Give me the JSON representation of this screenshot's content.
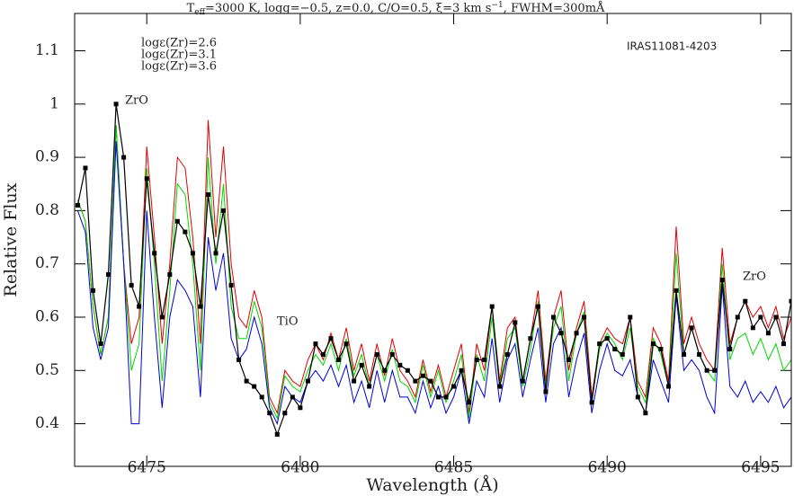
{
  "chart_data": {
    "type": "line",
    "title": [
      "T",
      "eff",
      "=3000 K, logg=−0.5, z=0.0, C/O=0.5, ξ=3 km s",
      "−1",
      ", FWHM=300mÅ"
    ],
    "x_label": "Wavelength (Å)",
    "y_label": "Relative Flux",
    "annotations": [
      "ZrO",
      "TiO",
      "ZrO",
      "IRAS11081-4203"
    ],
    "xlim": [
      6472.65,
      6496.0
    ],
    "ylim": [
      0.32,
      1.17
    ],
    "xticks": [
      6475,
      6480,
      6485,
      6490,
      6495
    ],
    "yticks": [
      0.4,
      0.5,
      0.6,
      0.7,
      0.8,
      0.9,
      1,
      1.1
    ],
    "x": [
      6472.75,
      6473.0,
      6473.25,
      6473.5,
      6473.75,
      6474.0,
      6474.25,
      6474.5,
      6474.75,
      6475.0,
      6475.25,
      6475.5,
      6475.75,
      6476.0,
      6476.25,
      6476.5,
      6476.75,
      6477.0,
      6477.25,
      6477.5,
      6477.75,
      6478.0,
      6478.25,
      6478.5,
      6478.75,
      6479.0,
      6479.25,
      6479.5,
      6479.75,
      6480.0,
      6480.25,
      6480.5,
      6480.75,
      6481.0,
      6481.25,
      6481.5,
      6481.75,
      6482.0,
      6482.25,
      6482.5,
      6482.75,
      6483.0,
      6483.25,
      6483.5,
      6483.75,
      6484.0,
      6484.25,
      6484.5,
      6484.75,
      6485.0,
      6485.25,
      6485.5,
      6485.75,
      6486.0,
      6486.25,
      6486.5,
      6486.75,
      6487.0,
      6487.25,
      6487.5,
      6487.75,
      6488.0,
      6488.25,
      6488.5,
      6488.75,
      6489.0,
      6489.25,
      6489.5,
      6489.75,
      6490.0,
      6490.25,
      6490.5,
      6490.75,
      6491.0,
      6491.25,
      6491.5,
      6491.75,
      6492.0,
      6492.25,
      6492.5,
      6492.75,
      6493.0,
      6493.25,
      6493.5,
      6493.75,
      6494.0,
      6494.25,
      6494.5,
      6494.75,
      6495.0,
      6495.25,
      6495.5,
      6495.75,
      6496.0
    ],
    "series": [
      {
        "name": "logε(Zr)=2.6",
        "color": "#e00000",
        "values": [
          0.82,
          0.78,
          0.62,
          0.53,
          0.6,
          0.96,
          0.7,
          0.55,
          0.6,
          0.92,
          0.75,
          0.55,
          0.7,
          0.9,
          0.88,
          0.75,
          0.55,
          0.97,
          0.75,
          0.92,
          0.7,
          0.6,
          0.58,
          0.65,
          0.6,
          0.45,
          0.42,
          0.5,
          0.48,
          0.47,
          0.52,
          0.55,
          0.52,
          0.57,
          0.52,
          0.58,
          0.5,
          0.55,
          0.48,
          0.55,
          0.49,
          0.56,
          0.5,
          0.48,
          0.45,
          0.52,
          0.46,
          0.51,
          0.45,
          0.5,
          0.55,
          0.42,
          0.55,
          0.5,
          0.62,
          0.48,
          0.58,
          0.6,
          0.48,
          0.56,
          0.65,
          0.48,
          0.6,
          0.65,
          0.5,
          0.58,
          0.63,
          0.45,
          0.55,
          0.58,
          0.56,
          0.55,
          0.6,
          0.48,
          0.45,
          0.58,
          0.55,
          0.48,
          0.77,
          0.55,
          0.6,
          0.55,
          0.52,
          0.5,
          0.73,
          0.55,
          0.6,
          0.63,
          0.6,
          0.62,
          0.58,
          0.62,
          0.56,
          0.6
        ]
      },
      {
        "name": "logε(Zr)=3.1",
        "color": "#00d800",
        "values": [
          0.82,
          0.78,
          0.62,
          0.53,
          0.6,
          0.96,
          0.7,
          0.5,
          0.55,
          0.88,
          0.7,
          0.48,
          0.65,
          0.85,
          0.83,
          0.7,
          0.5,
          0.9,
          0.7,
          0.85,
          0.62,
          0.56,
          0.56,
          0.63,
          0.58,
          0.44,
          0.41,
          0.49,
          0.47,
          0.46,
          0.5,
          0.53,
          0.51,
          0.55,
          0.5,
          0.56,
          0.49,
          0.53,
          0.47,
          0.53,
          0.48,
          0.54,
          0.48,
          0.47,
          0.44,
          0.51,
          0.45,
          0.5,
          0.44,
          0.48,
          0.53,
          0.41,
          0.53,
          0.48,
          0.6,
          0.47,
          0.56,
          0.58,
          0.47,
          0.54,
          0.63,
          0.47,
          0.58,
          0.62,
          0.48,
          0.57,
          0.61,
          0.44,
          0.54,
          0.57,
          0.55,
          0.52,
          0.58,
          0.47,
          0.44,
          0.56,
          0.53,
          0.47,
          0.72,
          0.53,
          0.58,
          0.53,
          0.5,
          0.48,
          0.7,
          0.52,
          0.56,
          0.57,
          0.53,
          0.56,
          0.52,
          0.55,
          0.5,
          0.52
        ]
      },
      {
        "name": "logε(Zr)=3.6",
        "color": "#0000d8",
        "values": [
          0.8,
          0.76,
          0.58,
          0.52,
          0.58,
          0.93,
          0.7,
          0.4,
          0.4,
          0.8,
          0.6,
          0.43,
          0.6,
          0.67,
          0.65,
          0.62,
          0.45,
          0.75,
          0.65,
          0.72,
          0.56,
          0.52,
          0.54,
          0.6,
          0.55,
          0.43,
          0.4,
          0.47,
          0.45,
          0.44,
          0.48,
          0.5,
          0.48,
          0.51,
          0.47,
          0.51,
          0.44,
          0.48,
          0.43,
          0.5,
          0.44,
          0.5,
          0.45,
          0.45,
          0.42,
          0.48,
          0.43,
          0.47,
          0.42,
          0.45,
          0.5,
          0.4,
          0.48,
          0.45,
          0.56,
          0.44,
          0.52,
          0.55,
          0.45,
          0.52,
          0.58,
          0.44,
          0.55,
          0.58,
          0.45,
          0.52,
          0.57,
          0.42,
          0.5,
          0.55,
          0.5,
          0.49,
          0.52,
          0.45,
          0.42,
          0.52,
          0.48,
          0.44,
          0.64,
          0.5,
          0.52,
          0.5,
          0.45,
          0.42,
          0.66,
          0.47,
          0.45,
          0.48,
          0.44,
          0.46,
          0.44,
          0.47,
          0.43,
          0.45
        ]
      },
      {
        "color": "#000000",
        "markers": true,
        "values": [
          0.81,
          0.88,
          0.65,
          0.55,
          0.68,
          1.0,
          0.9,
          0.66,
          0.62,
          0.86,
          0.72,
          0.6,
          0.68,
          0.78,
          0.76,
          0.72,
          0.62,
          0.83,
          0.72,
          0.8,
          0.66,
          0.52,
          0.48,
          0.47,
          0.45,
          0.42,
          0.38,
          0.42,
          0.45,
          0.43,
          0.48,
          0.55,
          0.53,
          0.56,
          0.52,
          0.55,
          0.48,
          0.51,
          0.47,
          0.53,
          0.5,
          0.53,
          0.51,
          0.5,
          0.48,
          0.49,
          0.48,
          0.45,
          0.45,
          0.47,
          0.5,
          0.44,
          0.52,
          0.52,
          0.62,
          0.47,
          0.53,
          0.59,
          0.48,
          0.56,
          0.62,
          0.46,
          0.6,
          0.57,
          0.52,
          0.57,
          0.6,
          0.44,
          0.55,
          0.56,
          0.54,
          0.53,
          0.6,
          0.45,
          0.42,
          0.55,
          0.54,
          0.47,
          0.65,
          0.53,
          0.58,
          0.53,
          0.5,
          0.5,
          0.67,
          0.54,
          0.6,
          0.63,
          0.58,
          0.6,
          0.57,
          0.6,
          0.55,
          0.63
        ]
      }
    ]
  }
}
